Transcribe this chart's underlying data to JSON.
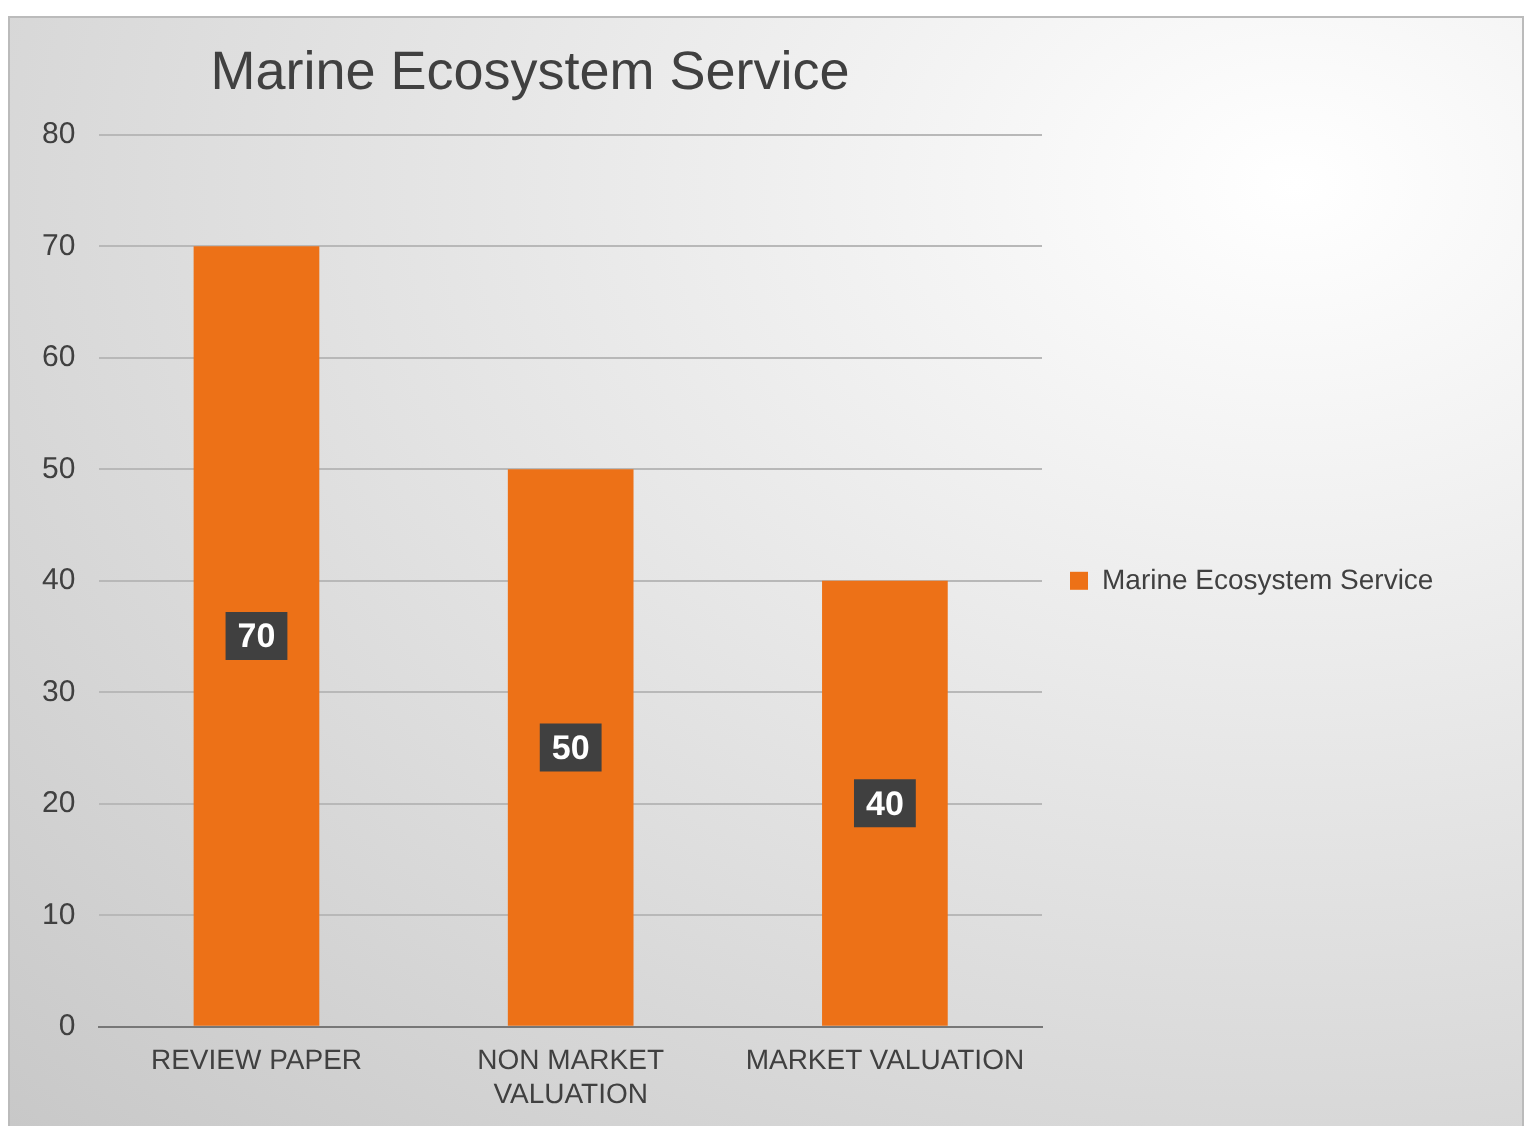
{
  "chart_data": {
    "type": "bar",
    "title": "Marine Ecosystem Service",
    "categories": [
      "REVIEW PAPER",
      "NON MARKET VALUATION",
      "MARKET VALUATION"
    ],
    "series": [
      {
        "name": "Marine Ecosystem Service",
        "color": "#ed7117",
        "values": [
          70,
          50,
          40
        ]
      }
    ],
    "ylim": [
      0,
      80
    ],
    "yticks": [
      0,
      10,
      20,
      30,
      40,
      50,
      60,
      70,
      80
    ],
    "grid": "y",
    "legend": "right",
    "data_labels": true
  }
}
